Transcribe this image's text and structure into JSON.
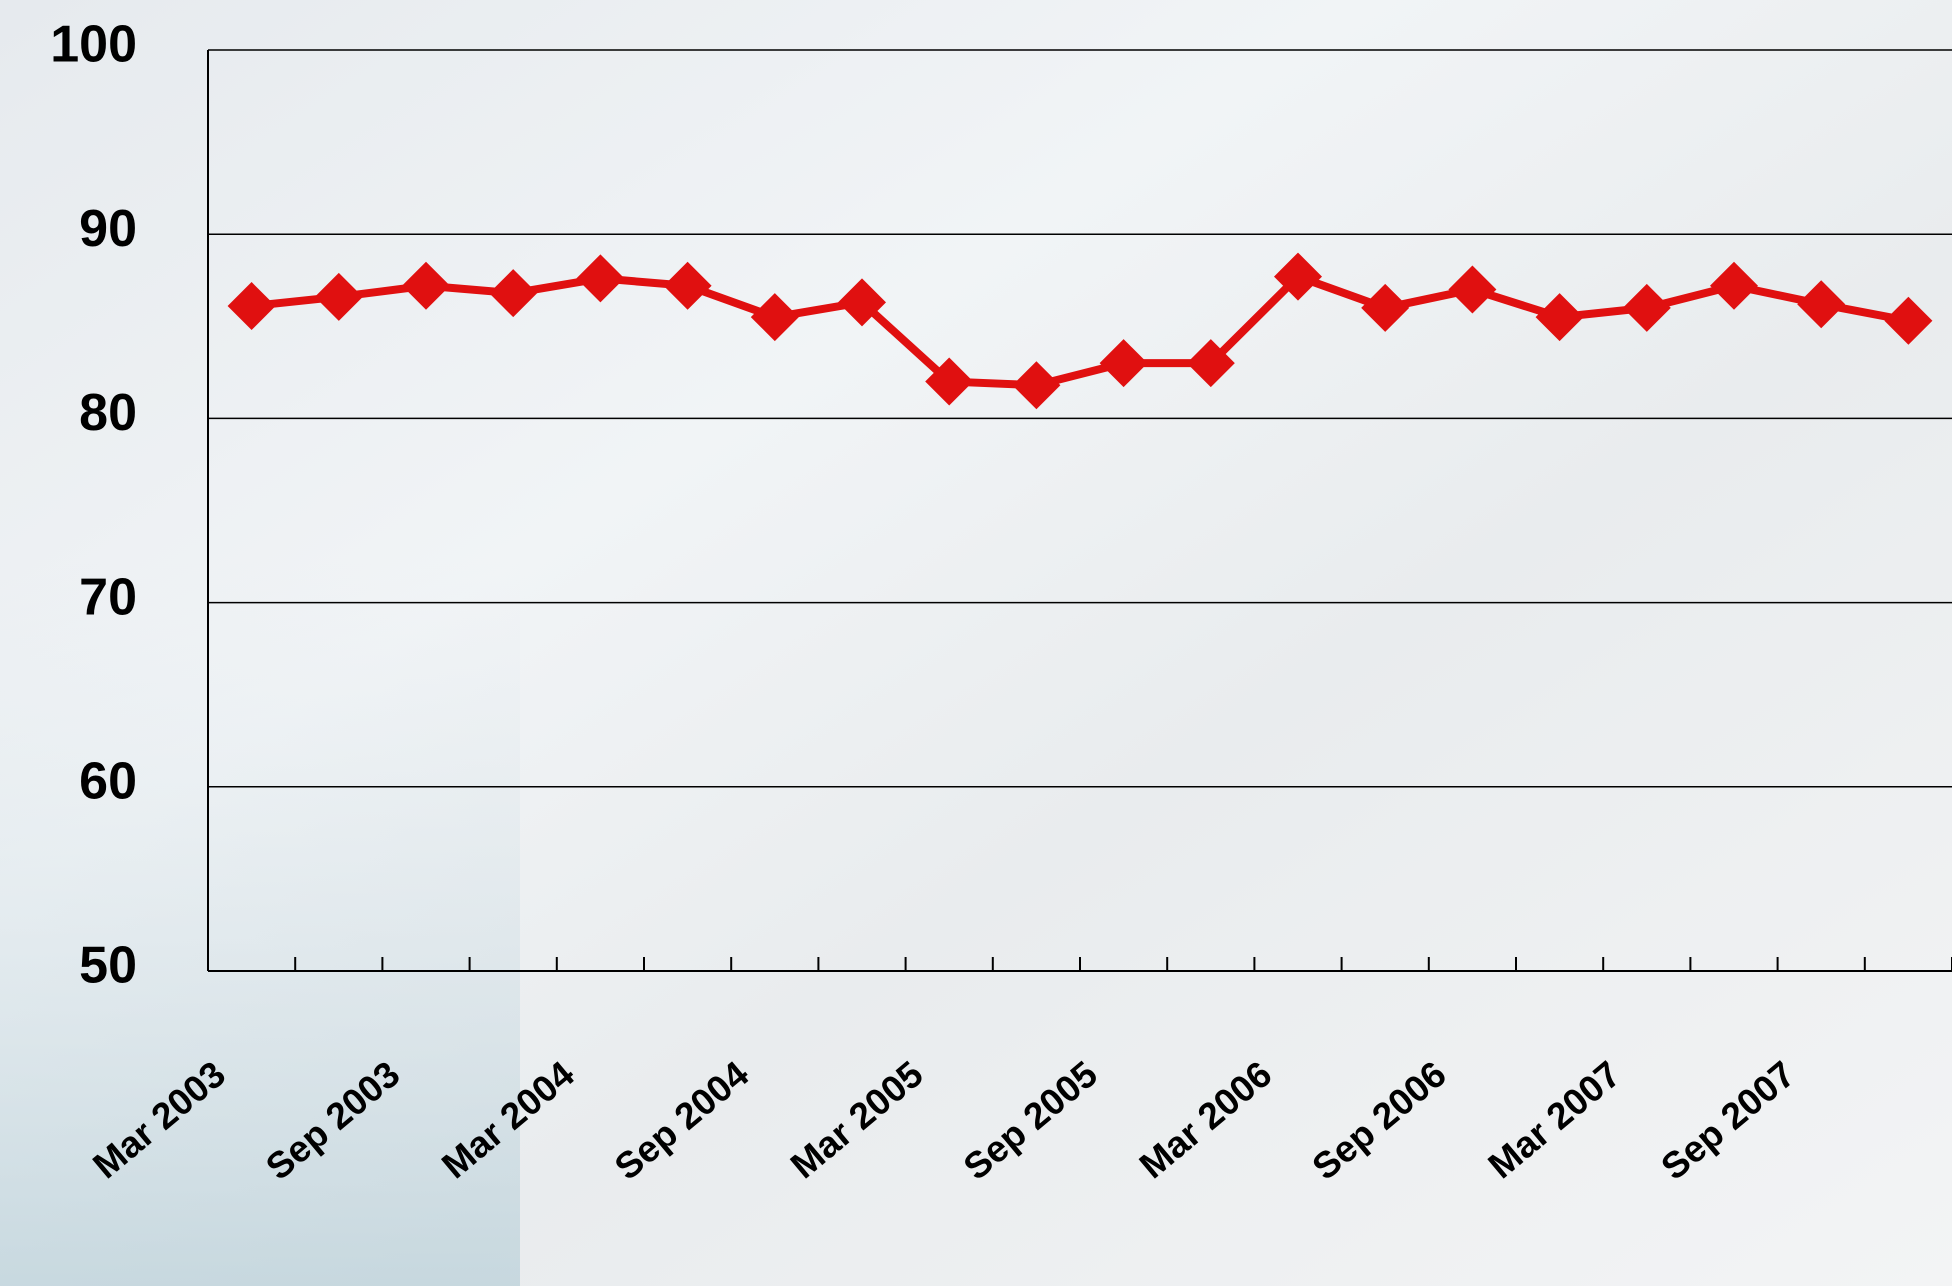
{
  "chart_data": {
    "type": "line",
    "categories": [
      "Mar 2003",
      null,
      "Sep 2003",
      null,
      "Mar 2004",
      null,
      "Sep 2004",
      null,
      "Mar 2005",
      null,
      "Sep 2005",
      null,
      "Mar 2006",
      null,
      "Sep 2006",
      null,
      "Mar 2007",
      null,
      "Sep 2007",
      null
    ],
    "series": [
      {
        "color": "#e01010",
        "values": [
          86.1,
          86.6,
          87.2,
          86.8,
          87.6,
          87.2,
          85.5,
          86.3,
          82.0,
          81.8,
          83.0,
          83.0,
          87.7,
          86.0,
          87.0,
          85.5,
          86.0,
          87.2,
          86.2,
          85.3
        ]
      }
    ],
    "ylim": [
      50,
      100
    ],
    "yticks": [
      50,
      60,
      70,
      80,
      90,
      100
    ],
    "grid": true
  }
}
